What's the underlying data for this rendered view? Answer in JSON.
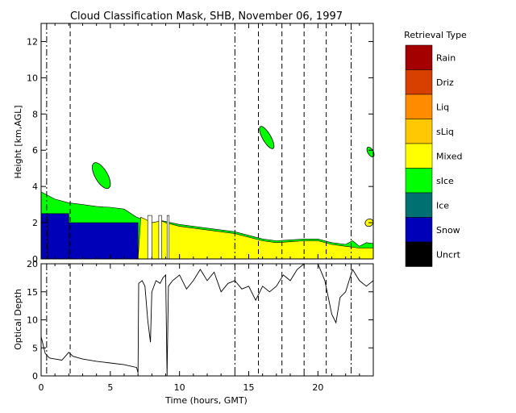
{
  "chart_data": {
    "type": "heatmap",
    "title": "Cloud Classification Mask, SHB, November 06, 1997",
    "panels": [
      {
        "name": "classification",
        "ylabel": "Height [km,AGL]",
        "ylim": [
          0,
          13
        ],
        "yticks": [
          0,
          2,
          4,
          6,
          8,
          10,
          12
        ],
        "layers": [
          {
            "class": "sIce",
            "top": [
              [
                0,
                3.7
              ],
              [
                0.5,
                3.5
              ],
              [
                1,
                3.3
              ],
              [
                2,
                3.1
              ],
              [
                3,
                3.0
              ],
              [
                4,
                2.9
              ],
              [
                5,
                2.85
              ],
              [
                6,
                2.75
              ],
              [
                6.9,
                2.3
              ],
              [
                7.3,
                2.2
              ],
              [
                8,
                2.0
              ],
              [
                8.8,
                2.1
              ],
              [
                10,
                1.9
              ],
              [
                12,
                1.7
              ],
              [
                14,
                1.5
              ],
              [
                16,
                1.1
              ],
              [
                17,
                1.0
              ],
              [
                18,
                1.05
              ],
              [
                19,
                1.1
              ],
              [
                20,
                1.1
              ],
              [
                21,
                0.9
              ],
              [
                22,
                0.8
              ],
              [
                22.5,
                1.0
              ],
              [
                23,
                0.7
              ],
              [
                23.5,
                0.9
              ],
              [
                24,
                0.85
              ]
            ]
          },
          {
            "class": "Mixed",
            "top": [
              [
                7.2,
                2.3
              ],
              [
                7.5,
                2.2
              ],
              [
                8,
                2.0
              ],
              [
                8.7,
                2.1
              ],
              [
                9,
                2.0
              ],
              [
                10,
                1.8
              ],
              [
                12,
                1.6
              ],
              [
                14,
                1.4
              ],
              [
                16,
                1.0
              ],
              [
                17,
                0.9
              ],
              [
                18,
                0.95
              ],
              [
                19,
                1.0
              ],
              [
                20,
                1.0
              ],
              [
                21,
                0.8
              ],
              [
                22,
                0.7
              ],
              [
                23,
                0.6
              ],
              [
                24,
                0.6
              ]
            ],
            "start": 7.0
          },
          {
            "class": "Snow",
            "segments": [
              [
                0,
                0.5,
                2.5
              ],
              [
                0.5,
                2.0,
                2.5
              ],
              [
                2.0,
                7.0,
                2.0
              ]
            ]
          }
        ],
        "patches": [
          {
            "class": "sIce",
            "x": [
              3.9,
              4.8
            ],
            "y": [
              3.8,
              5.4
            ]
          },
          {
            "class": "sIce",
            "x": [
              16.0,
              16.6
            ],
            "y": [
              6.0,
              7.4
            ]
          },
          {
            "class": "sIce",
            "x": [
              23.6,
              24.0
            ],
            "y": [
              5.6,
              6.2
            ]
          },
          {
            "class": "Mixed",
            "x": [
              23.4,
              24.0
            ],
            "y": [
              1.8,
              2.2
            ]
          }
        ],
        "gaps": [
          [
            7.7,
            8.0
          ],
          [
            8.5,
            8.7
          ],
          [
            9.1,
            9.25
          ]
        ]
      },
      {
        "name": "optical-depth",
        "ylabel": "Optical Depth",
        "ylim": [
          0,
          20
        ],
        "yticks": [
          0,
          5,
          10,
          15,
          20
        ],
        "line": [
          [
            0,
            7
          ],
          [
            0.3,
            4
          ],
          [
            0.6,
            3.2
          ],
          [
            1,
            3.0
          ],
          [
            1.5,
            2.8
          ],
          [
            2,
            4.2
          ],
          [
            2.3,
            3.5
          ],
          [
            3,
            3.0
          ],
          [
            4,
            2.6
          ],
          [
            5,
            2.3
          ],
          [
            6,
            2.0
          ],
          [
            6.9,
            1.5
          ],
          [
            7.0,
            0.5
          ],
          [
            7.05,
            16.5
          ],
          [
            7.3,
            17
          ],
          [
            7.5,
            16
          ],
          [
            7.7,
            10
          ],
          [
            7.9,
            6
          ],
          [
            8.0,
            15
          ],
          [
            8.3,
            17
          ],
          [
            8.6,
            16.5
          ],
          [
            8.8,
            17.5
          ],
          [
            9.0,
            18
          ],
          [
            9.1,
            0
          ],
          [
            9.2,
            16
          ],
          [
            9.5,
            17
          ],
          [
            10,
            18
          ],
          [
            10.5,
            15.5
          ],
          [
            11,
            17
          ],
          [
            11.5,
            19
          ],
          [
            12,
            17
          ],
          [
            12.5,
            18.5
          ],
          [
            13,
            15
          ],
          [
            13.5,
            16.5
          ],
          [
            14,
            17
          ],
          [
            14.5,
            15.5
          ],
          [
            15,
            16
          ],
          [
            15.5,
            13.5
          ],
          [
            16,
            16
          ],
          [
            16.5,
            15
          ],
          [
            17,
            16
          ],
          [
            17.5,
            18
          ],
          [
            18,
            17
          ],
          [
            18.5,
            19
          ],
          [
            19,
            20
          ],
          [
            19.5,
            20
          ],
          [
            20,
            20
          ],
          [
            20.5,
            17
          ],
          [
            21,
            11
          ],
          [
            21.3,
            9.5
          ],
          [
            21.6,
            14
          ],
          [
            22,
            15
          ],
          [
            22.5,
            19
          ],
          [
            23,
            17
          ],
          [
            23.5,
            16
          ],
          [
            24,
            17
          ]
        ]
      }
    ],
    "xlabel": "Time (hours, GMT)",
    "xlim": [
      0,
      24
    ],
    "xticks": [
      0,
      5,
      10,
      15,
      20
    ],
    "markers": {
      "dashed": [
        2.1,
        15.7,
        17.4,
        19.0,
        20.6
      ],
      "dashdot": [
        0.4,
        14.0,
        22.4
      ]
    },
    "legend": {
      "title": "Retrieval Type",
      "position": "right",
      "items": [
        {
          "label": "Rain",
          "color": "#a40000"
        },
        {
          "label": "Driz",
          "color": "#d84000"
        },
        {
          "label": "Liq",
          "color": "#ff8c00"
        },
        {
          "label": "sLiq",
          "color": "#ffc800"
        },
        {
          "label": "Mixed",
          "color": "#ffff00"
        },
        {
          "label": "sIce",
          "color": "#00ff00"
        },
        {
          "label": "Ice",
          "color": "#007070"
        },
        {
          "label": "Snow",
          "color": "#0000b8"
        },
        {
          "label": "Uncrt",
          "color": "#000000"
        }
      ]
    }
  }
}
